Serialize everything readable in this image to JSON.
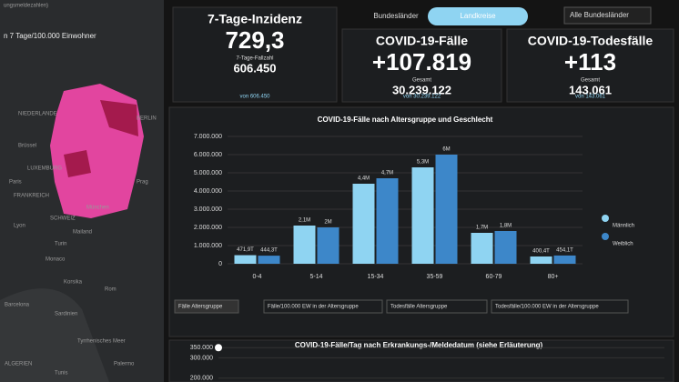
{
  "map": {
    "header": "ungsmeldezahlen)",
    "title": "n 7 Tage/100.000 Einwohner",
    "labels": [
      "NIEDERLANDE",
      "BERLIN",
      "Brüssel",
      "LUXEMBURG",
      "Paris",
      "FRANKREICH",
      "Prag",
      "München",
      "SCHWEIZ",
      "Lyon",
      "Turin",
      "Mailand",
      "Monaco",
      "Korsika",
      "Rom",
      "Sardinien",
      "Tyrrhenisches Meer",
      "Barcelona",
      "Palermo",
      "ALGERIEN",
      "Tunis"
    ]
  },
  "tabs": {
    "items": [
      "Bundesländer",
      "Landkreise"
    ],
    "dropdown": "Alle Bundesländer"
  },
  "kpis": [
    {
      "title": "7-Tage-Inzidenz",
      "value": "729,3",
      "sub_label": "7-Tage-Fallzahl",
      "sub_value": "606.450",
      "note": "von 606.450"
    },
    {
      "title": "COVID-19-Fälle",
      "value": "+107.819",
      "sub_label": "Gesamt",
      "sub_value": "30.239.122",
      "note": "von 30.239.122"
    },
    {
      "title": "COVID-19-Todesfälle",
      "value": "+113",
      "sub_label": "Gesamt",
      "sub_value": "143.061",
      "note": "von 143.061"
    }
  ],
  "chart_tabs": [
    "Fälle Altersgruppe",
    "Fälle/100.000 EW in der Altersgruppe",
    "Todesfälle Altersgruppe",
    "Todesfälle/100.000 EW in der Altersgruppe"
  ],
  "chart_data": [
    {
      "type": "bar",
      "title": "COVID-19-Fälle nach Altersgruppe und Geschlecht",
      "categories": [
        "0-4",
        "5-14",
        "15-34",
        "35-59",
        "60-79",
        "80+"
      ],
      "series": [
        {
          "name": "Männlich",
          "color": "#8fd4f2",
          "values": [
            471900,
            2100000,
            4400000,
            5300000,
            1700000,
            400400
          ],
          "value_labels": [
            "471,9T",
            "2,1M",
            "4,4M",
            "5,3M",
            "1,7M",
            "400,4T"
          ]
        },
        {
          "name": "Weiblich",
          "color": "#3d87c9",
          "values": [
            444300,
            2000000,
            4700000,
            6000000,
            1800000,
            454100
          ],
          "value_labels": [
            "444,3T",
            "2M",
            "4,7M",
            "6M",
            "1,8M",
            "454,1T"
          ]
        }
      ],
      "ylim": [
        0,
        7000000
      ],
      "yticks": [
        0,
        {
          "value": 1000000,
          "label": "1.000.000"
        },
        {
          "value": 2000000,
          "label": "2.000.000"
        },
        {
          "value": 3000000,
          "label": "3.000.000"
        },
        {
          "value": 4000000,
          "label": "4.000.000"
        },
        {
          "value": 5000000,
          "label": "5.000.000"
        },
        {
          "value": 6000000,
          "label": "6.000.000"
        },
        {
          "value": 7000000,
          "label": "7.000.000"
        }
      ],
      "grid": true
    },
    {
      "type": "line",
      "title": "COVID-19-Fälle/Tag nach Erkrankungs-/Meldedatum (siehe Erläuterung)",
      "ylim": [
        190000,
        360000
      ],
      "yticks": [
        {
          "value": 350000,
          "label": "350.000"
        },
        {
          "value": 300000,
          "label": "300.000"
        },
        {
          "value": 200000,
          "label": "200.000"
        }
      ],
      "grid": true
    }
  ]
}
